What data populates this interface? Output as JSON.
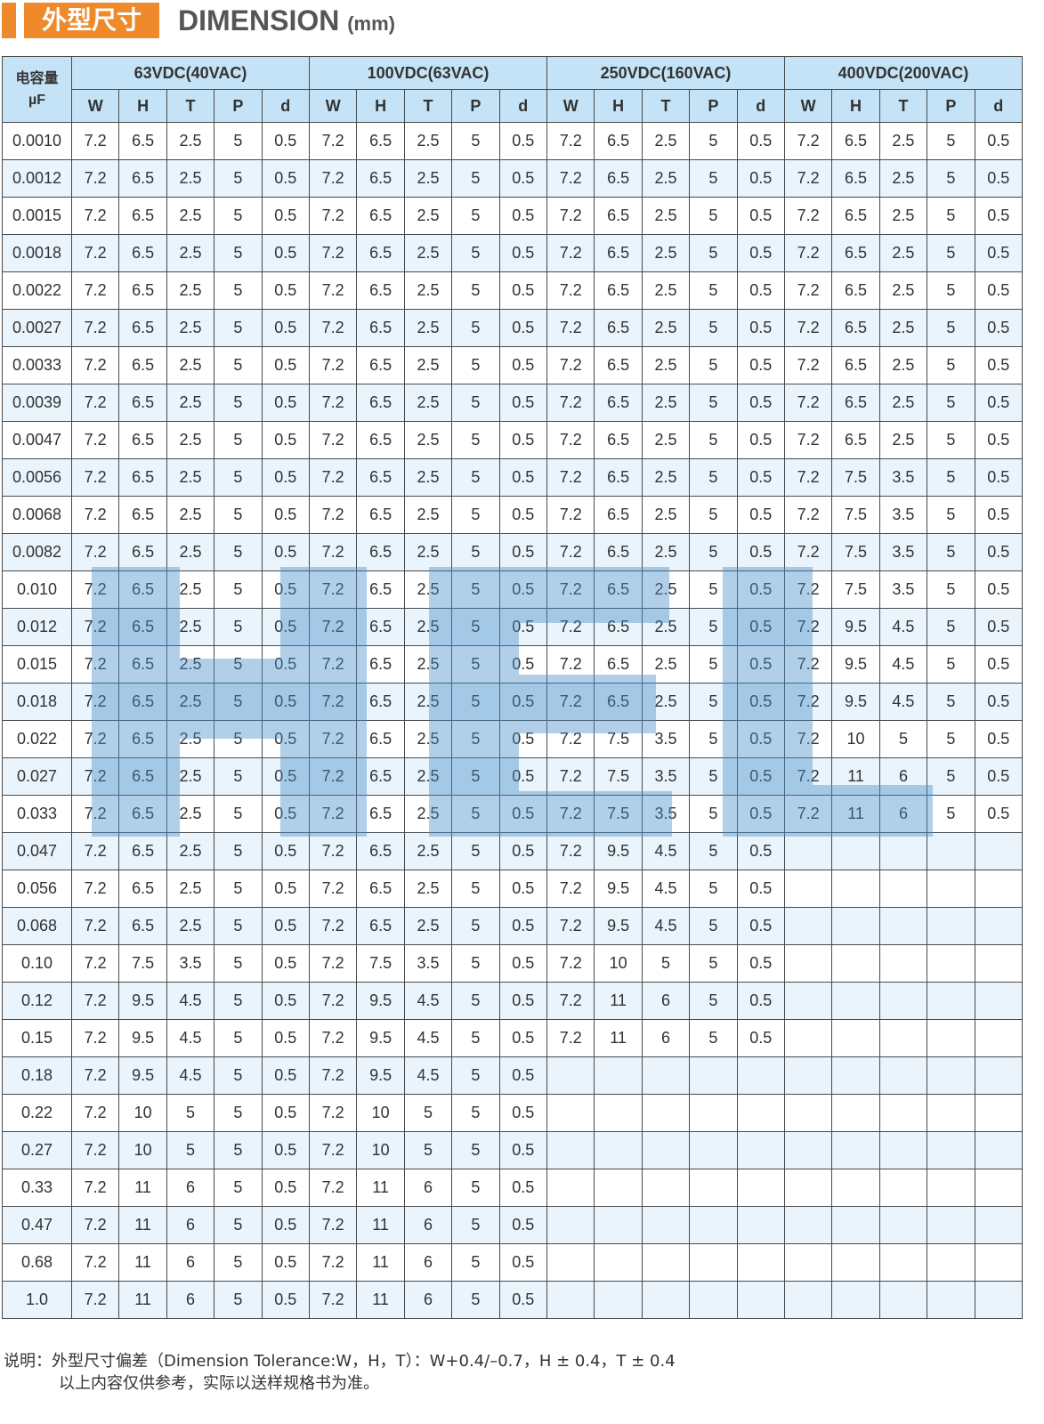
{
  "header": {
    "title_cn": "外型尺寸",
    "title_en": "DIMENSION",
    "unit": "(mm)"
  },
  "table": {
    "cap_label_cn": "电容量",
    "cap_label_unit": "µF",
    "groups": [
      "63VDC(40VAC)",
      "100VDC(63VAC)",
      "250VDC(160VAC)",
      "400VDC(200VAC)"
    ],
    "sub_cols": [
      "W",
      "H",
      "T",
      "P",
      "d"
    ],
    "rows": [
      [
        "0.0010",
        [
          "7.2",
          "6.5",
          "2.5",
          "5",
          "0.5"
        ],
        [
          "7.2",
          "6.5",
          "2.5",
          "5",
          "0.5"
        ],
        [
          "7.2",
          "6.5",
          "2.5",
          "5",
          "0.5"
        ],
        [
          "7.2",
          "6.5",
          "2.5",
          "5",
          "0.5"
        ]
      ],
      [
        "0.0012",
        [
          "7.2",
          "6.5",
          "2.5",
          "5",
          "0.5"
        ],
        [
          "7.2",
          "6.5",
          "2.5",
          "5",
          "0.5"
        ],
        [
          "7.2",
          "6.5",
          "2.5",
          "5",
          "0.5"
        ],
        [
          "7.2",
          "6.5",
          "2.5",
          "5",
          "0.5"
        ]
      ],
      [
        "0.0015",
        [
          "7.2",
          "6.5",
          "2.5",
          "5",
          "0.5"
        ],
        [
          "7.2",
          "6.5",
          "2.5",
          "5",
          "0.5"
        ],
        [
          "7.2",
          "6.5",
          "2.5",
          "5",
          "0.5"
        ],
        [
          "7.2",
          "6.5",
          "2.5",
          "5",
          "0.5"
        ]
      ],
      [
        "0.0018",
        [
          "7.2",
          "6.5",
          "2.5",
          "5",
          "0.5"
        ],
        [
          "7.2",
          "6.5",
          "2.5",
          "5",
          "0.5"
        ],
        [
          "7.2",
          "6.5",
          "2.5",
          "5",
          "0.5"
        ],
        [
          "7.2",
          "6.5",
          "2.5",
          "5",
          "0.5"
        ]
      ],
      [
        "0.0022",
        [
          "7.2",
          "6.5",
          "2.5",
          "5",
          "0.5"
        ],
        [
          "7.2",
          "6.5",
          "2.5",
          "5",
          "0.5"
        ],
        [
          "7.2",
          "6.5",
          "2.5",
          "5",
          "0.5"
        ],
        [
          "7.2",
          "6.5",
          "2.5",
          "5",
          "0.5"
        ]
      ],
      [
        "0.0027",
        [
          "7.2",
          "6.5",
          "2.5",
          "5",
          "0.5"
        ],
        [
          "7.2",
          "6.5",
          "2.5",
          "5",
          "0.5"
        ],
        [
          "7.2",
          "6.5",
          "2.5",
          "5",
          "0.5"
        ],
        [
          "7.2",
          "6.5",
          "2.5",
          "5",
          "0.5"
        ]
      ],
      [
        "0.0033",
        [
          "7.2",
          "6.5",
          "2.5",
          "5",
          "0.5"
        ],
        [
          "7.2",
          "6.5",
          "2.5",
          "5",
          "0.5"
        ],
        [
          "7.2",
          "6.5",
          "2.5",
          "5",
          "0.5"
        ],
        [
          "7.2",
          "6.5",
          "2.5",
          "5",
          "0.5"
        ]
      ],
      [
        "0.0039",
        [
          "7.2",
          "6.5",
          "2.5",
          "5",
          "0.5"
        ],
        [
          "7.2",
          "6.5",
          "2.5",
          "5",
          "0.5"
        ],
        [
          "7.2",
          "6.5",
          "2.5",
          "5",
          "0.5"
        ],
        [
          "7.2",
          "6.5",
          "2.5",
          "5",
          "0.5"
        ]
      ],
      [
        "0.0047",
        [
          "7.2",
          "6.5",
          "2.5",
          "5",
          "0.5"
        ],
        [
          "7.2",
          "6.5",
          "2.5",
          "5",
          "0.5"
        ],
        [
          "7.2",
          "6.5",
          "2.5",
          "5",
          "0.5"
        ],
        [
          "7.2",
          "6.5",
          "2.5",
          "5",
          "0.5"
        ]
      ],
      [
        "0.0056",
        [
          "7.2",
          "6.5",
          "2.5",
          "5",
          "0.5"
        ],
        [
          "7.2",
          "6.5",
          "2.5",
          "5",
          "0.5"
        ],
        [
          "7.2",
          "6.5",
          "2.5",
          "5",
          "0.5"
        ],
        [
          "7.2",
          "7.5",
          "3.5",
          "5",
          "0.5"
        ]
      ],
      [
        "0.0068",
        [
          "7.2",
          "6.5",
          "2.5",
          "5",
          "0.5"
        ],
        [
          "7.2",
          "6.5",
          "2.5",
          "5",
          "0.5"
        ],
        [
          "7.2",
          "6.5",
          "2.5",
          "5",
          "0.5"
        ],
        [
          "7.2",
          "7.5",
          "3.5",
          "5",
          "0.5"
        ]
      ],
      [
        "0.0082",
        [
          "7.2",
          "6.5",
          "2.5",
          "5",
          "0.5"
        ],
        [
          "7.2",
          "6.5",
          "2.5",
          "5",
          "0.5"
        ],
        [
          "7.2",
          "6.5",
          "2.5",
          "5",
          "0.5"
        ],
        [
          "7.2",
          "7.5",
          "3.5",
          "5",
          "0.5"
        ]
      ],
      [
        "0.010",
        [
          "7.2",
          "6.5",
          "2.5",
          "5",
          "0.5"
        ],
        [
          "7.2",
          "6.5",
          "2.5",
          "5",
          "0.5"
        ],
        [
          "7.2",
          "6.5",
          "2.5",
          "5",
          "0.5"
        ],
        [
          "7.2",
          "7.5",
          "3.5",
          "5",
          "0.5"
        ]
      ],
      [
        "0.012",
        [
          "7.2",
          "6.5",
          "2.5",
          "5",
          "0.5"
        ],
        [
          "7.2",
          "6.5",
          "2.5",
          "5",
          "0.5"
        ],
        [
          "7.2",
          "6.5",
          "2.5",
          "5",
          "0.5"
        ],
        [
          "7.2",
          "9.5",
          "4.5",
          "5",
          "0.5"
        ]
      ],
      [
        "0.015",
        [
          "7.2",
          "6.5",
          "2.5",
          "5",
          "0.5"
        ],
        [
          "7.2",
          "6.5",
          "2.5",
          "5",
          "0.5"
        ],
        [
          "7.2",
          "6.5",
          "2.5",
          "5",
          "0.5"
        ],
        [
          "7.2",
          "9.5",
          "4.5",
          "5",
          "0.5"
        ]
      ],
      [
        "0.018",
        [
          "7.2",
          "6.5",
          "2.5",
          "5",
          "0.5"
        ],
        [
          "7.2",
          "6.5",
          "2.5",
          "5",
          "0.5"
        ],
        [
          "7.2",
          "6.5",
          "2.5",
          "5",
          "0.5"
        ],
        [
          "7.2",
          "9.5",
          "4.5",
          "5",
          "0.5"
        ]
      ],
      [
        "0.022",
        [
          "7.2",
          "6.5",
          "2.5",
          "5",
          "0.5"
        ],
        [
          "7.2",
          "6.5",
          "2.5",
          "5",
          "0.5"
        ],
        [
          "7.2",
          "7.5",
          "3.5",
          "5",
          "0.5"
        ],
        [
          "7.2",
          "10",
          "5",
          "5",
          "0.5"
        ]
      ],
      [
        "0.027",
        [
          "7.2",
          "6.5",
          "2.5",
          "5",
          "0.5"
        ],
        [
          "7.2",
          "6.5",
          "2.5",
          "5",
          "0.5"
        ],
        [
          "7.2",
          "7.5",
          "3.5",
          "5",
          "0.5"
        ],
        [
          "7.2",
          "11",
          "6",
          "5",
          "0.5"
        ]
      ],
      [
        "0.033",
        [
          "7.2",
          "6.5",
          "2.5",
          "5",
          "0.5"
        ],
        [
          "7.2",
          "6.5",
          "2.5",
          "5",
          "0.5"
        ],
        [
          "7.2",
          "7.5",
          "3.5",
          "5",
          "0.5"
        ],
        [
          "7.2",
          "11",
          "6",
          "5",
          "0.5"
        ]
      ],
      [
        "0.047",
        [
          "7.2",
          "6.5",
          "2.5",
          "5",
          "0.5"
        ],
        [
          "7.2",
          "6.5",
          "2.5",
          "5",
          "0.5"
        ],
        [
          "7.2",
          "9.5",
          "4.5",
          "5",
          "0.5"
        ],
        null
      ],
      [
        "0.056",
        [
          "7.2",
          "6.5",
          "2.5",
          "5",
          "0.5"
        ],
        [
          "7.2",
          "6.5",
          "2.5",
          "5",
          "0.5"
        ],
        [
          "7.2",
          "9.5",
          "4.5",
          "5",
          "0.5"
        ],
        null
      ],
      [
        "0.068",
        [
          "7.2",
          "6.5",
          "2.5",
          "5",
          "0.5"
        ],
        [
          "7.2",
          "6.5",
          "2.5",
          "5",
          "0.5"
        ],
        [
          "7.2",
          "9.5",
          "4.5",
          "5",
          "0.5"
        ],
        null
      ],
      [
        "0.10",
        [
          "7.2",
          "7.5",
          "3.5",
          "5",
          "0.5"
        ],
        [
          "7.2",
          "7.5",
          "3.5",
          "5",
          "0.5"
        ],
        [
          "7.2",
          "10",
          "5",
          "5",
          "0.5"
        ],
        null
      ],
      [
        "0.12",
        [
          "7.2",
          "9.5",
          "4.5",
          "5",
          "0.5"
        ],
        [
          "7.2",
          "9.5",
          "4.5",
          "5",
          "0.5"
        ],
        [
          "7.2",
          "11",
          "6",
          "5",
          "0.5"
        ],
        null
      ],
      [
        "0.15",
        [
          "7.2",
          "9.5",
          "4.5",
          "5",
          "0.5"
        ],
        [
          "7.2",
          "9.5",
          "4.5",
          "5",
          "0.5"
        ],
        [
          "7.2",
          "11",
          "6",
          "5",
          "0.5"
        ],
        null
      ],
      [
        "0.18",
        [
          "7.2",
          "9.5",
          "4.5",
          "5",
          "0.5"
        ],
        [
          "7.2",
          "9.5",
          "4.5",
          "5",
          "0.5"
        ],
        null,
        null
      ],
      [
        "0.22",
        [
          "7.2",
          "10",
          "5",
          "5",
          "0.5"
        ],
        [
          "7.2",
          "10",
          "5",
          "5",
          "0.5"
        ],
        null,
        null
      ],
      [
        "0.27",
        [
          "7.2",
          "10",
          "5",
          "5",
          "0.5"
        ],
        [
          "7.2",
          "10",
          "5",
          "5",
          "0.5"
        ],
        null,
        null
      ],
      [
        "0.33",
        [
          "7.2",
          "11",
          "6",
          "5",
          "0.5"
        ],
        [
          "7.2",
          "11",
          "6",
          "5",
          "0.5"
        ],
        null,
        null
      ],
      [
        "0.47",
        [
          "7.2",
          "11",
          "6",
          "5",
          "0.5"
        ],
        [
          "7.2",
          "11",
          "6",
          "5",
          "0.5"
        ],
        null,
        null
      ],
      [
        "0.68",
        [
          "7.2",
          "11",
          "6",
          "5",
          "0.5"
        ],
        [
          "7.2",
          "11",
          "6",
          "5",
          "0.5"
        ],
        null,
        null
      ],
      [
        "1.0",
        [
          "7.2",
          "11",
          "6",
          "5",
          "0.5"
        ],
        [
          "7.2",
          "11",
          "6",
          "5",
          "0.5"
        ],
        null,
        null
      ]
    ]
  },
  "watermark": {
    "text": "HEL",
    "color": "#468cc8"
  },
  "notes": {
    "line1": "说明：外型尺寸偏差（Dimension Tolerance:W，H，T）：W+0.4/–0.7，H ± 0.4，T ± 0.4",
    "line2": "以上内容仅供参考，实际以送样规格书为准。"
  },
  "colors": {
    "accent": "#ee8a2b",
    "header_bg": "#c4e3f6",
    "stripe": "#e9f4fc"
  }
}
